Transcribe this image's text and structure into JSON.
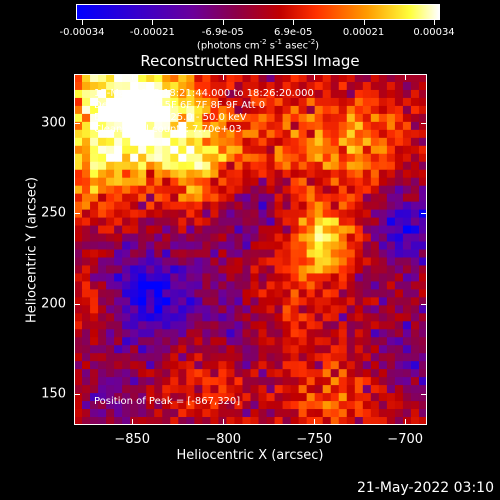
{
  "colorbar": {
    "ticks": [
      "-0.00034",
      "-0.00021",
      "-6.9e-05",
      "6.9e-05",
      "0.00021",
      "0.00034"
    ],
    "units_main": "(photons cm",
    "units_sup1": "-2",
    "units_mid": " s",
    "units_sup2": "-1",
    "units_end": " asec",
    "units_sup3": "-2",
    "units_close": ")"
  },
  "annotations": {
    "time": "17-May-2015 18:21:44.000 to 18:26:20.000",
    "detectors": "Detectors: 3F 5F 6F 7F 8F 9F  Att 0",
    "energy": "Energy Range: 25.0 - 50.0 keV",
    "method": "Clean     Total counts: 7.70e+03",
    "peak": "Position of Peak = [-867,320]"
  },
  "footer": {
    "timestamp": "21-May-2022 03:10"
  },
  "chart_data": {
    "type": "heatmap",
    "title": "Reconstructed RHESSI Image",
    "xlabel": "Heliocentric X (arcsec)",
    "ylabel": "Heliocentric Y (arcsec)",
    "xlim": [
      -882,
      -688
    ],
    "ylim": [
      133,
      327
    ],
    "x_ticks": [
      -850,
      -800,
      -750,
      -700
    ],
    "y_ticks": [
      150,
      200,
      250,
      300
    ],
    "x_tick_labels": [
      "−850",
      "−800",
      "−750",
      "−700"
    ],
    "y_tick_labels": [
      "150",
      "200",
      "250",
      "300"
    ],
    "value_range": [
      -0.00034,
      0.00034
    ],
    "peak_position": [
      -867,
      320
    ],
    "grid_size": [
      44,
      44
    ],
    "colormap": [
      "#0000ff",
      "#3b00c8",
      "#6a009a",
      "#8c0048",
      "#c00000",
      "#ff3000",
      "#ff9a00",
      "#ffff3c",
      "#ffffff"
    ],
    "hot_regions": [
      {
        "x": -860,
        "y": 312,
        "value": 0.00034,
        "radius": 22
      },
      {
        "x": -830,
        "y": 300,
        "value": 0.00028,
        "radius": 20
      },
      {
        "x": -808,
        "y": 270,
        "value": 0.00022,
        "radius": 16
      },
      {
        "x": -870,
        "y": 270,
        "value": 0.00018,
        "radius": 18
      },
      {
        "x": -745,
        "y": 235,
        "value": 0.0003,
        "radius": 14
      },
      {
        "x": -760,
        "y": 290,
        "value": 0.00016,
        "radius": 22
      },
      {
        "x": -720,
        "y": 290,
        "value": 0.00016,
        "radius": 18
      },
      {
        "x": -770,
        "y": 200,
        "value": 0.00012,
        "radius": 16
      },
      {
        "x": -810,
        "y": 160,
        "value": 0.0001,
        "radius": 18
      },
      {
        "x": -740,
        "y": 150,
        "value": 0.00014,
        "radius": 18
      },
      {
        "x": -875,
        "y": 200,
        "value": 0.0001,
        "radius": 12
      }
    ],
    "cold_regions": [
      {
        "x": -840,
        "y": 205,
        "value": -0.00026,
        "radius": 18
      },
      {
        "x": -790,
        "y": 255,
        "value": -0.00016,
        "radius": 16
      },
      {
        "x": -700,
        "y": 240,
        "value": -0.00022,
        "radius": 14
      },
      {
        "x": -790,
        "y": 190,
        "value": -0.00012,
        "radius": 16
      },
      {
        "x": -700,
        "y": 170,
        "value": -0.00012,
        "radius": 14
      },
      {
        "x": -860,
        "y": 150,
        "value": -0.0001,
        "radius": 14
      }
    ]
  }
}
